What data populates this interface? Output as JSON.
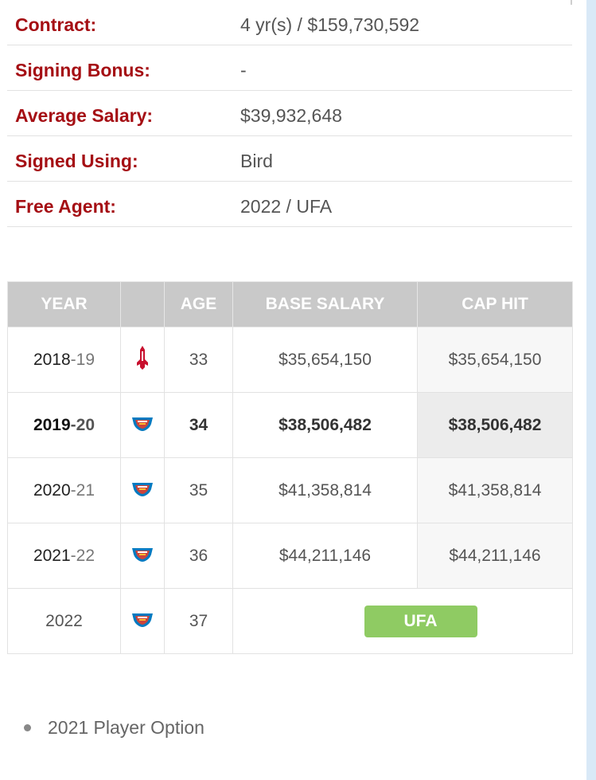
{
  "contract_info": [
    {
      "label": "Contract:",
      "value": "4 yr(s) / $159,730,592"
    },
    {
      "label": "Signing Bonus:",
      "value": "-"
    },
    {
      "label": "Average Salary:",
      "value": "$39,932,648"
    },
    {
      "label": "Signed Using:",
      "value": "Bird"
    },
    {
      "label": "Free Agent:",
      "value": "2022 / UFA"
    }
  ],
  "table": {
    "headers": [
      "YEAR",
      "",
      "AGE",
      "BASE SALARY",
      "CAP HIT"
    ],
    "rows": [
      {
        "year_a": "2018",
        "year_b": "-19",
        "team_icon": "rockets-logo-icon",
        "age": "33",
        "base": "$35,654,150",
        "cap": "$35,654,150"
      },
      {
        "year_a": "2019",
        "year_b": "-20",
        "team_icon": "thunder-logo-icon",
        "age": "34",
        "base": "$38,506,482",
        "cap": "$38,506,482"
      },
      {
        "year_a": "2020",
        "year_b": "-21",
        "team_icon": "thunder-logo-icon",
        "age": "35",
        "base": "$41,358,814",
        "cap": "$41,358,814"
      },
      {
        "year_a": "2021",
        "year_b": "-22",
        "team_icon": "thunder-logo-icon",
        "age": "36",
        "base": "$44,211,146",
        "cap": "$44,211,146"
      }
    ],
    "fa_row": {
      "year": "2022",
      "team_icon": "thunder-logo-icon",
      "age": "37",
      "status": "UFA"
    }
  },
  "colors": {
    "label_red": "#a50f14",
    "option_green": "#5bb030",
    "ufa_badge": "#8fcb63"
  },
  "notes": [
    "2021 Player Option"
  ]
}
